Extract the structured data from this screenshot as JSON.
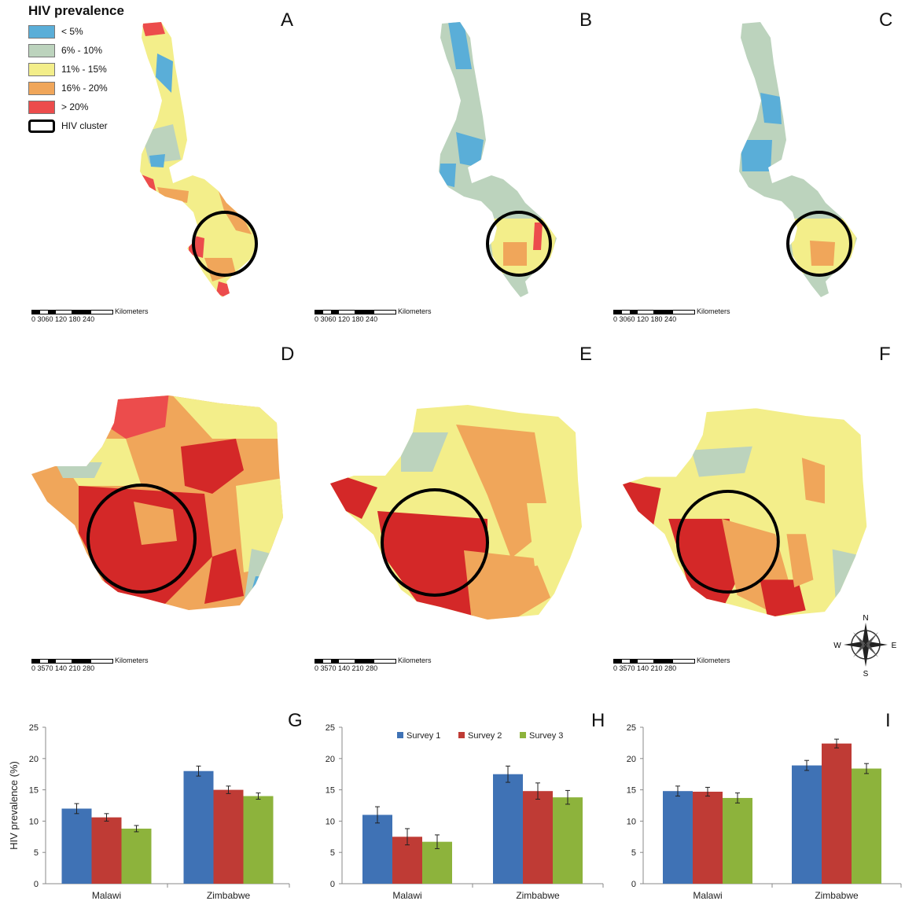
{
  "legend": {
    "title": "HIV prevalence",
    "items": [
      {
        "label": "< 5%",
        "color": "#5aaed8"
      },
      {
        "label": "6% - 10%",
        "color": "#bcd3bd"
      },
      {
        "label": "11% - 15%",
        "color": "#f3ee8a"
      },
      {
        "label": "16% - 20%",
        "color": "#f0a65a"
      },
      {
        "label": "> 20%",
        "color": "#ec4c4c"
      },
      {
        "label": "HIV cluster",
        "color": "#000000"
      }
    ]
  },
  "panels": {
    "A": "A",
    "B": "B",
    "C": "C",
    "D": "D",
    "E": "E",
    "F": "F",
    "G": "G",
    "H": "H",
    "I": "I"
  },
  "scalebars": {
    "unit": "Kilometers",
    "malawi_ticks": "0 3060   120  180  240",
    "zimbabwe_ticks": "0 3570   140  210  280"
  },
  "compass": {
    "n": "N",
    "s": "S",
    "e": "E",
    "w": "W"
  },
  "chart_data": [
    {
      "type": "bar",
      "panel": "G",
      "categories": [
        "Malawi",
        "Zimbabwe"
      ],
      "series": [
        {
          "values": [
            12.0,
            18.0
          ],
          "errors": [
            0.8,
            0.8
          ]
        },
        {
          "values": [
            10.6,
            15.0
          ],
          "errors": [
            0.6,
            0.6
          ]
        },
        {
          "values": [
            8.8,
            14.0
          ],
          "errors": [
            0.5,
            0.5
          ]
        }
      ],
      "ylabel": "HIV prevalence (%)",
      "ylim": [
        0,
        25
      ],
      "yticks": [
        0,
        5,
        10,
        15,
        20,
        25
      ]
    },
    {
      "type": "bar",
      "panel": "H",
      "categories": [
        "Malawi",
        "Zimbabwe"
      ],
      "series": [
        {
          "name": "Survey 1",
          "values": [
            11.0,
            17.5
          ],
          "errors": [
            1.3,
            1.3
          ]
        },
        {
          "name": "Survey 2",
          "values": [
            7.5,
            14.8
          ],
          "errors": [
            1.3,
            1.3
          ]
        },
        {
          "name": "Survey 3",
          "values": [
            6.7,
            13.8
          ],
          "errors": [
            1.1,
            1.1
          ]
        }
      ],
      "ylim": [
        0,
        25
      ],
      "yticks": [
        0,
        5,
        10,
        15,
        20,
        25
      ],
      "legend": "top"
    },
    {
      "type": "bar",
      "panel": "I",
      "categories": [
        "Malawi",
        "Zimbabwe"
      ],
      "series": [
        {
          "values": [
            14.8,
            18.9
          ],
          "errors": [
            0.8,
            0.8
          ]
        },
        {
          "values": [
            14.7,
            22.4
          ],
          "errors": [
            0.7,
            0.7
          ]
        },
        {
          "values": [
            13.7,
            18.4
          ],
          "errors": [
            0.8,
            0.8
          ]
        }
      ],
      "ylim": [
        0,
        25
      ],
      "yticks": [
        0,
        5,
        10,
        15,
        20,
        25
      ]
    }
  ],
  "series_colors": [
    "#3f72b5",
    "#bf3b35",
    "#8db33c"
  ],
  "series_names_legend": [
    "Survey 1",
    "Survey 2",
    "Survey 3"
  ]
}
